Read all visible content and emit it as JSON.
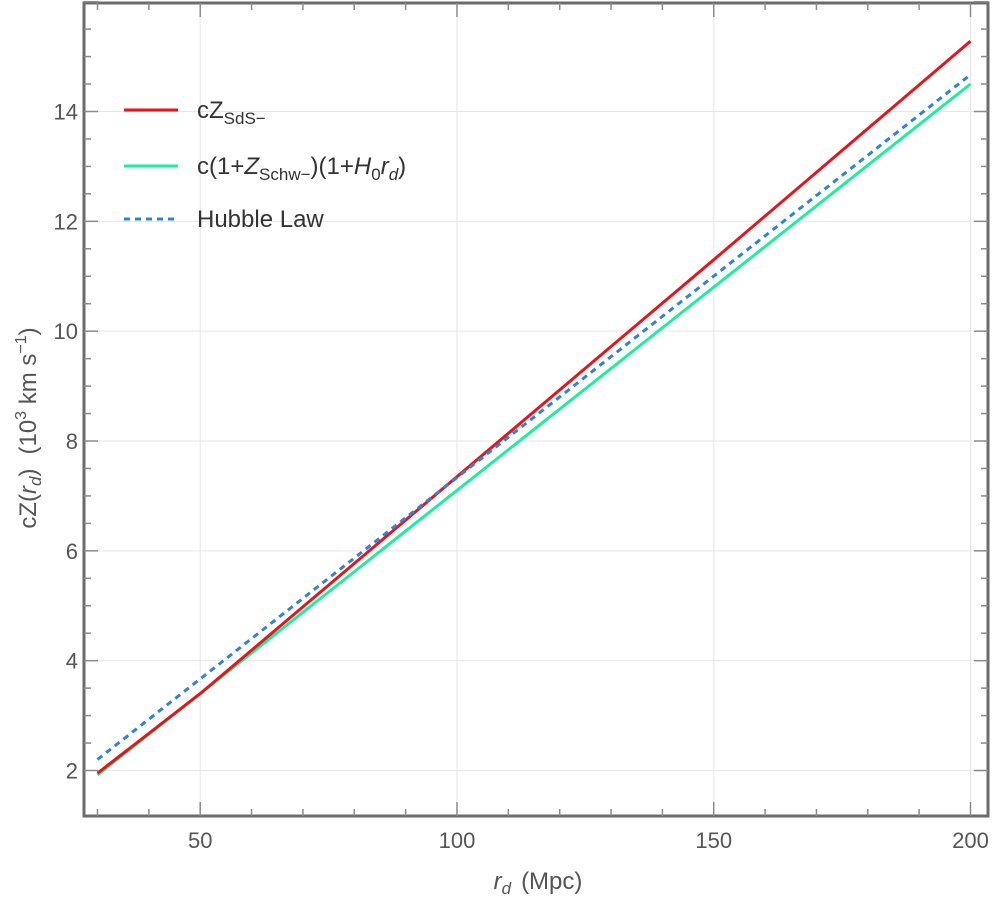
{
  "chart_data": {
    "type": "line",
    "xlabel": {
      "var": "r",
      "sub": "d",
      "unit": "(Mpc)"
    },
    "ylabel": {
      "pre": "cZ(",
      "var": "r",
      "sub": "d",
      "post": ")",
      "unit_pre": "(10",
      "unit_exp": "3",
      "unit_mid": " km s",
      "unit_exp2": "−1",
      "unit_post": ")"
    },
    "xlim": [
      28,
      203
    ],
    "ylim": [
      1.3,
      15.8
    ],
    "xticks": [
      50,
      100,
      150,
      200
    ],
    "yticks": [
      2,
      4,
      6,
      8,
      10,
      12,
      14
    ],
    "grid": true,
    "legend_position": "top-left",
    "series": [
      {
        "key": "sds",
        "legend": {
          "parts": [
            {
              "t": "cZ"
            },
            {
              "t": "SdS−",
              "sub": true
            }
          ]
        },
        "color": "#e8141c",
        "dash": "solid",
        "x": [
          30,
          50,
          100,
          150,
          200
        ],
        "y": [
          1.95,
          3.4,
          7.35,
          11.3,
          15.28
        ]
      },
      {
        "key": "schw",
        "legend": {
          "parts": [
            {
              "t": "c(1+"
            },
            {
              "t": "Z",
              "i": true
            },
            {
              "t": "Schw−",
              "sub": true
            },
            {
              "t": ")(1+"
            },
            {
              "t": "H",
              "i": true
            },
            {
              "t": "0",
              "sub": true
            },
            {
              "t": "r",
              "i": true
            },
            {
              "t": "d",
              "sub": true,
              "i": true
            },
            {
              "t": ")"
            }
          ]
        },
        "color": "#19f09c",
        "dash": "solid",
        "x": [
          30,
          200
        ],
        "y": [
          1.92,
          14.5
        ]
      },
      {
        "key": "hubble",
        "legend": {
          "parts": [
            {
              "t": "Hubble Law"
            }
          ]
        },
        "color": "#2c84d8",
        "dash": "dashed",
        "x": [
          30,
          200
        ],
        "y": [
          2.2,
          14.67
        ]
      }
    ]
  }
}
